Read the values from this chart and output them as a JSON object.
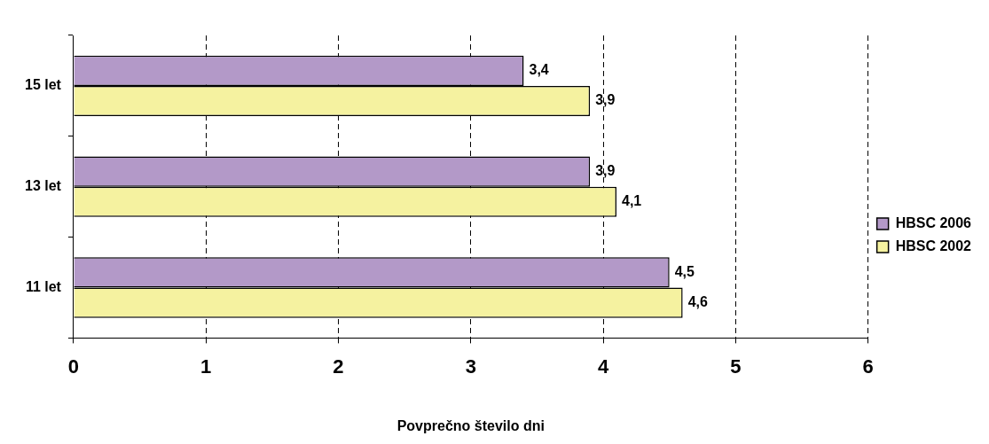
{
  "chart_data": {
    "type": "bar",
    "orientation": "horizontal",
    "xlabel": "Povprečno število dni",
    "categories": [
      "15 let",
      "13 let",
      "11 let"
    ],
    "series": [
      {
        "name": "HBSC 2006",
        "color": "#b399c8",
        "values": [
          3.4,
          3.9,
          4.5
        ],
        "value_labels": [
          "3,4",
          "3,9",
          "4,5"
        ]
      },
      {
        "name": "HBSC 2002",
        "color": "#f5f2a0",
        "values": [
          3.9,
          4.1,
          4.6
        ],
        "value_labels": [
          "3,9",
          "4,1",
          "4,6"
        ]
      }
    ],
    "xlim": [
      0,
      6
    ],
    "xticks": [
      0,
      1,
      2,
      3,
      4,
      5,
      6
    ],
    "grid": "x",
    "legend": "right"
  }
}
